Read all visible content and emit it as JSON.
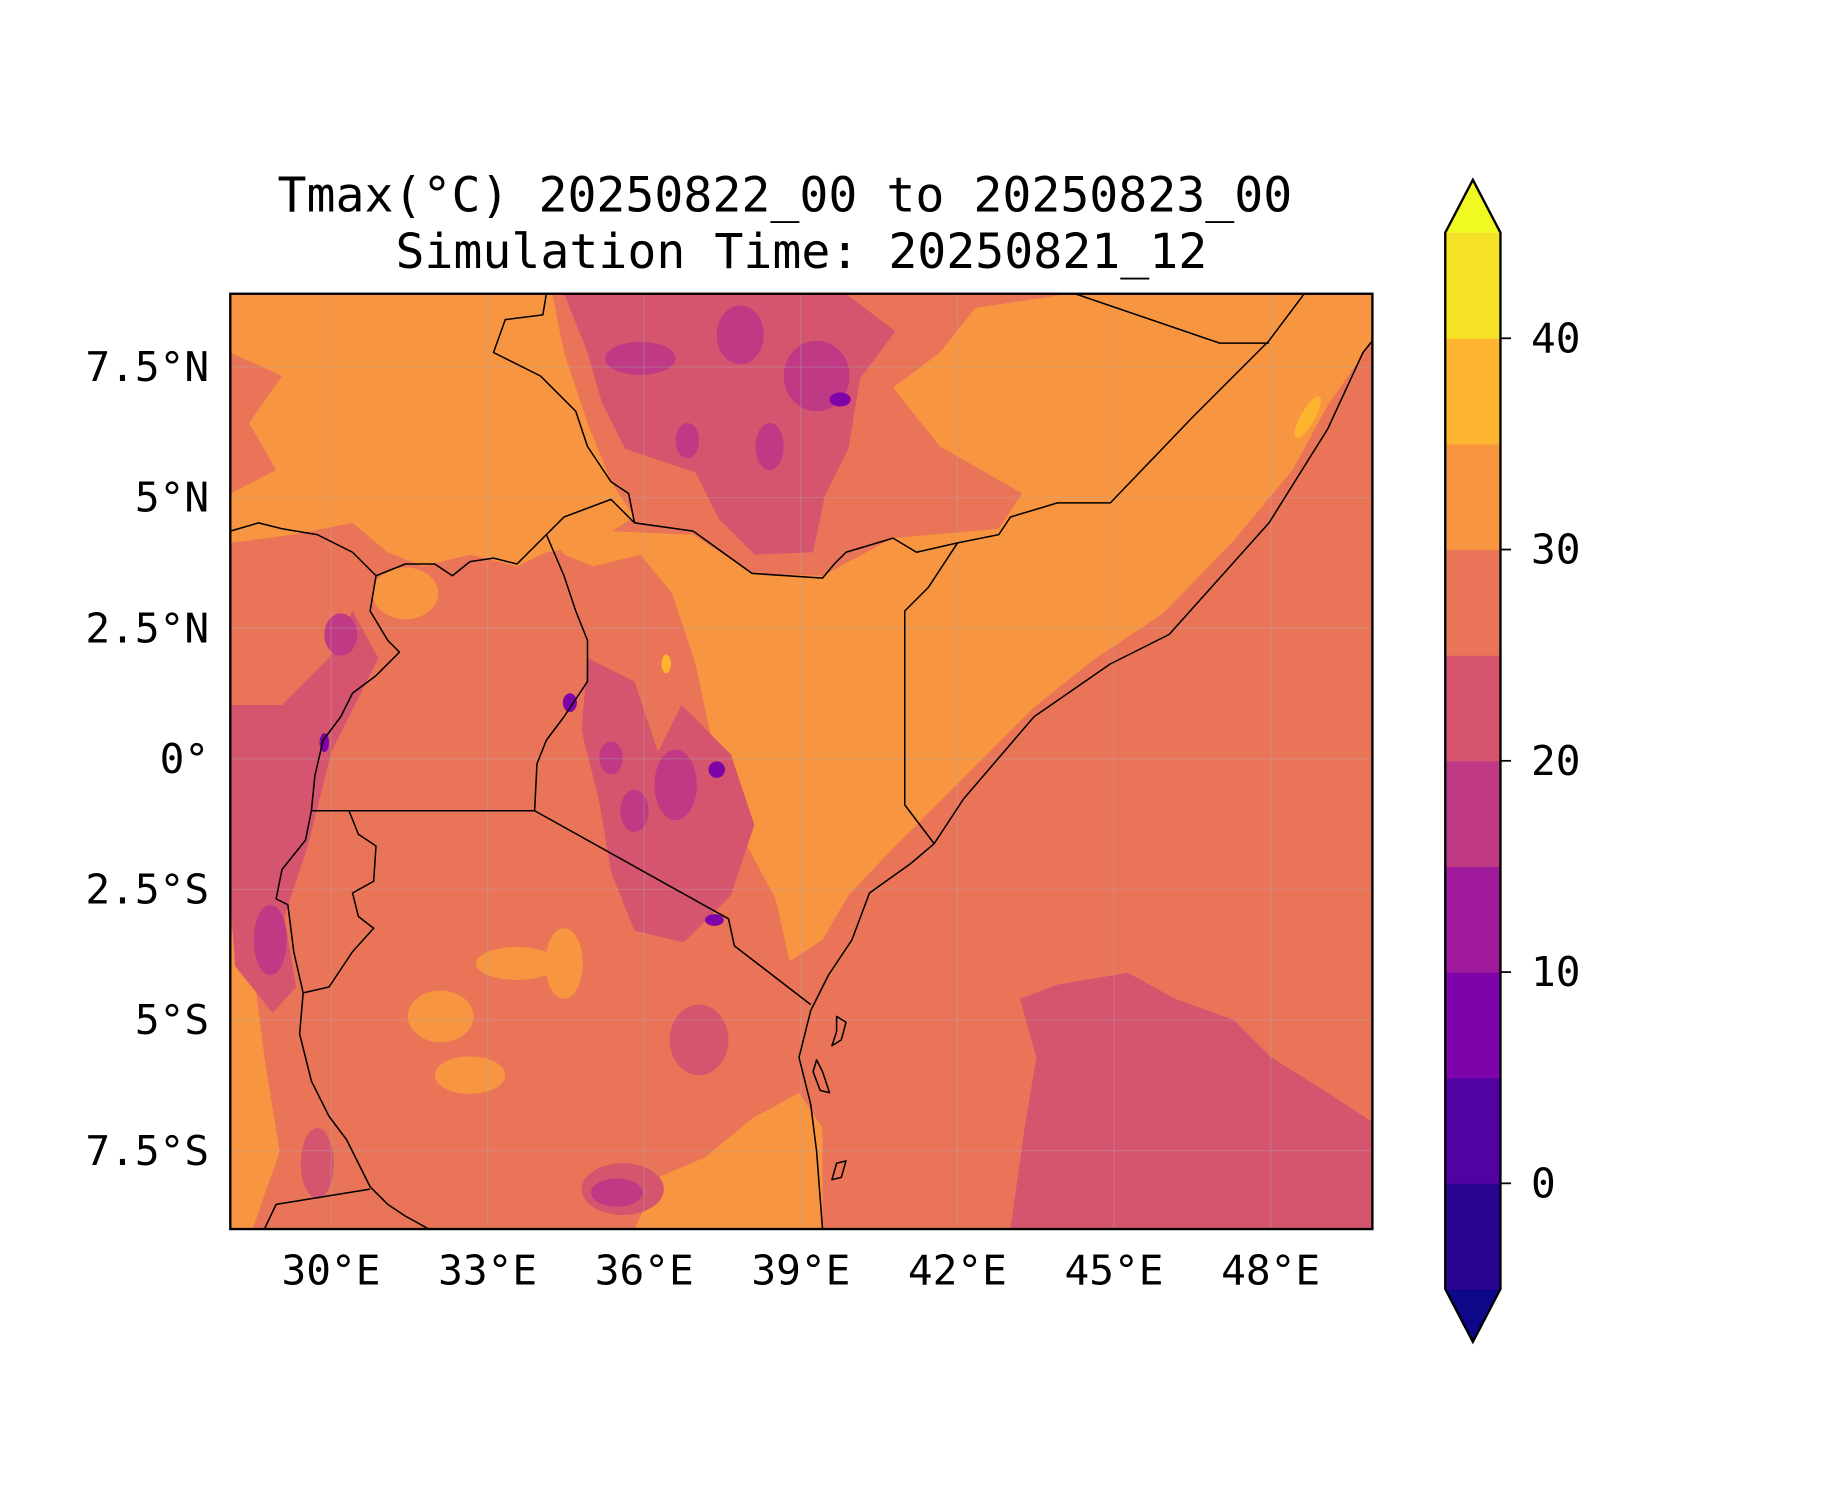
{
  "chart_data": {
    "type": "heatmap",
    "subtype": "filled-contour-map",
    "title": "Tmax(°C) 20250822_00 to 20250823_00",
    "subtitle": "Simulation Time: 20250821_12",
    "variable": "Tmax",
    "units": "°C",
    "extent": {
      "lon": [
        28.07,
        49.95
      ],
      "lat": [
        -9.0,
        8.9
      ]
    },
    "x_ticks": [
      {
        "value": 30,
        "label": "30°E"
      },
      {
        "value": 33,
        "label": "33°E"
      },
      {
        "value": 36,
        "label": "36°E"
      },
      {
        "value": 39,
        "label": "39°E"
      },
      {
        "value": 42,
        "label": "42°E"
      },
      {
        "value": 45,
        "label": "45°E"
      },
      {
        "value": 48,
        "label": "48°E"
      }
    ],
    "y_ticks": [
      {
        "value": 7.5,
        "label": "7.5°N"
      },
      {
        "value": 5,
        "label": "5°N"
      },
      {
        "value": 2.5,
        "label": "2.5°N"
      },
      {
        "value": 0,
        "label": "0°"
      },
      {
        "value": -2.5,
        "label": "2.5°S"
      },
      {
        "value": -5,
        "label": "5°S"
      },
      {
        "value": -7.5,
        "label": "7.5°S"
      }
    ],
    "grid": true,
    "colorbar": {
      "placement": "right",
      "extend": "both",
      "levels": [
        -5,
        0,
        5,
        10,
        15,
        20,
        25,
        30,
        35,
        40,
        45
      ],
      "colors": [
        "#2a0593",
        "#5002a2",
        "#7e03a8",
        "#a01a9c",
        "#bf3984",
        "#d5546e",
        "#ea7458",
        "#f89540",
        "#fdb42f",
        "#f5e125"
      ],
      "under_color": "#0d0887",
      "over_color": "#f0f921",
      "ticks": [
        {
          "value": 0,
          "label": "0"
        },
        {
          "value": 10,
          "label": "10"
        },
        {
          "value": 20,
          "label": "20"
        },
        {
          "value": 30,
          "label": "30"
        },
        {
          "value": 40,
          "label": "40"
        }
      ]
    },
    "dominant_ranges": {
      "ocean_and_lowlands": "25-30",
      "northern_kenya_somalia_south_sudan": "30-35",
      "highlands_ethiopia_kenya": "15-25",
      "peak_cold_spots": "5-10",
      "southeast_ocean": "20-25",
      "hottest_spot_north_somalia": "35-40"
    }
  }
}
